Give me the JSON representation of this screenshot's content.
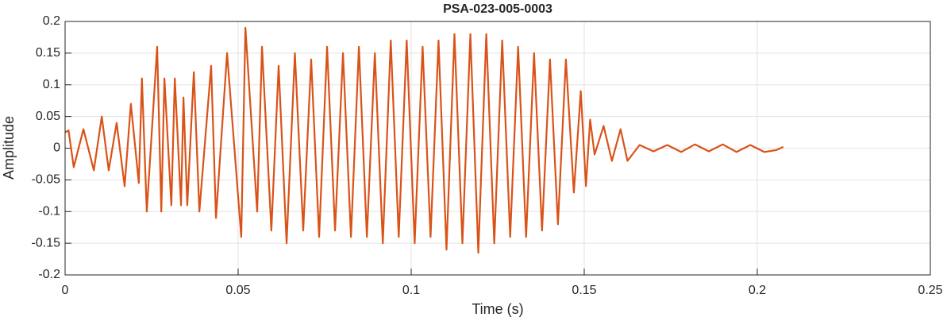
{
  "chart_data": {
    "type": "line",
    "title": "PSA-023-005-0003",
    "x_label": "Time (s)",
    "y_label": "Amplitude",
    "xlim": [
      0,
      0.25
    ],
    "xticks": [
      0,
      0.05,
      0.1,
      0.15,
      0.2,
      0.25
    ],
    "ylim": [
      -0.2,
      0.2
    ],
    "yticks": [
      -0.2,
      -0.15,
      -0.1,
      -0.05,
      0,
      0.05,
      0.1,
      0.15,
      0.2
    ],
    "grid": true,
    "x": [
      0,
      0.001,
      0.0025,
      0.0053,
      0.0083,
      0.0106,
      0.0126,
      0.0149,
      0.0172,
      0.019,
      0.0213,
      0.0222,
      0.0236,
      0.0266,
      0.0278,
      0.0287,
      0.0307,
      0.0317,
      0.0335,
      0.0342,
      0.0353,
      0.0372,
      0.0388,
      0.0422,
      0.0436,
      0.0468,
      0.0509,
      0.0521,
      0.0555,
      0.0569,
      0.0596,
      0.0617,
      0.064,
      0.0664,
      0.0688,
      0.0711,
      0.0734,
      0.0757,
      0.078,
      0.0803,
      0.0826,
      0.0849,
      0.0872,
      0.0895,
      0.0918,
      0.0941,
      0.0964,
      0.0987,
      0.101,
      0.1033,
      0.1056,
      0.1079,
      0.1102,
      0.1125,
      0.1148,
      0.1171,
      0.1194,
      0.1217,
      0.124,
      0.1263,
      0.1286,
      0.1309,
      0.1332,
      0.1355,
      0.1378,
      0.1401,
      0.1424,
      0.1447,
      0.147,
      0.149,
      0.1505,
      0.1517,
      0.153,
      0.1556,
      0.158,
      0.1605,
      0.1625,
      0.166,
      0.17,
      0.174,
      0.178,
      0.182,
      0.186,
      0.19,
      0.194,
      0.198,
      0.202,
      0.2055,
      0.2075
    ],
    "series": [
      {
        "name": "Amplitude",
        "color": "#d95319",
        "values": [
          0.025,
          0.028,
          -0.03,
          0.03,
          -0.035,
          0.05,
          -0.035,
          0.04,
          -0.06,
          0.07,
          -0.055,
          0.11,
          -0.1,
          0.16,
          -0.1,
          0.11,
          -0.09,
          0.11,
          -0.09,
          0.08,
          -0.09,
          0.12,
          -0.1,
          0.13,
          -0.11,
          0.15,
          -0.14,
          0.19,
          -0.1,
          0.16,
          -0.13,
          0.13,
          -0.15,
          0.15,
          -0.13,
          0.14,
          -0.14,
          0.16,
          -0.13,
          0.15,
          -0.14,
          0.16,
          -0.14,
          0.15,
          -0.15,
          0.17,
          -0.14,
          0.17,
          -0.15,
          0.16,
          -0.14,
          0.17,
          -0.16,
          0.18,
          -0.15,
          0.18,
          -0.165,
          0.18,
          -0.15,
          0.17,
          -0.14,
          0.16,
          -0.14,
          0.15,
          -0.13,
          0.14,
          -0.12,
          0.14,
          -0.07,
          0.09,
          -0.06,
          0.045,
          -0.01,
          0.035,
          -0.02,
          0.03,
          -0.02,
          0.005,
          -0.005,
          0.005,
          -0.006,
          0.006,
          -0.005,
          0.006,
          -0.006,
          0.005,
          -0.006,
          -0.003,
          0.002
        ]
      }
    ]
  }
}
